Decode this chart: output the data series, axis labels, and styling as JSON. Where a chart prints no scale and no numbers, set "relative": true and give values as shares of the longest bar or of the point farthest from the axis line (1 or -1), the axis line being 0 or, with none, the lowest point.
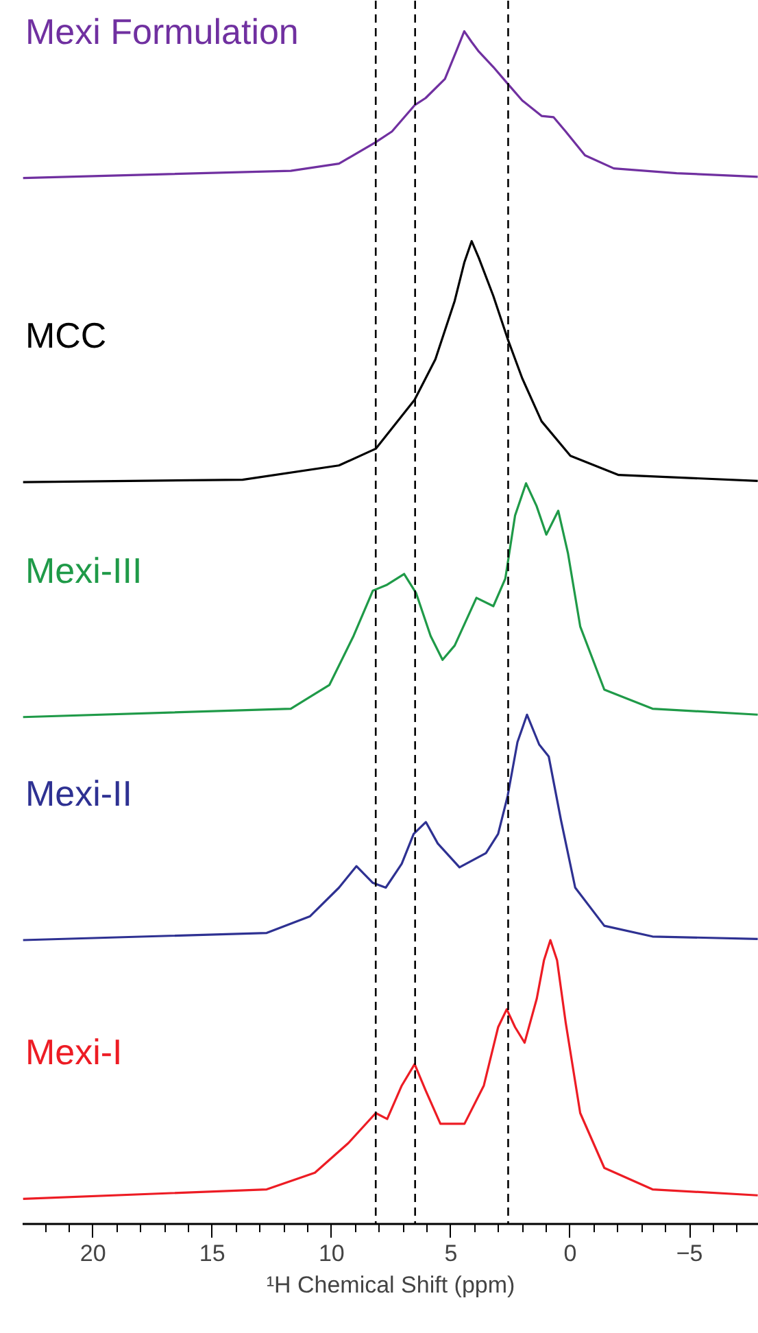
{
  "chart_data": {
    "type": "line",
    "relative": true,
    "xlabel": "¹H Chemical Shift (ppm)",
    "xlim": [
      22.95,
      -7.9
    ],
    "xticks": [
      20,
      15,
      10,
      5,
      0,
      {
        "value": -5,
        "label": "−5"
      }
    ],
    "grid": false,
    "line_style": "solid",
    "marker": "none",
    "ref_lines": [
      {
        "axis": "x",
        "value": 8.15,
        "label": null,
        "color": "#000000",
        "line_style": "dashed"
      },
      {
        "axis": "x",
        "value": 6.5,
        "label": null,
        "color": "#000000",
        "line_style": "dashed"
      },
      {
        "axis": "x",
        "value": 2.6,
        "label": null,
        "color": "#000000",
        "line_style": "dashed"
      }
    ],
    "series": [
      {
        "name": "Mexi Formulation",
        "color": "#7030a0",
        "x": [
          22.93,
          11.71,
          9.69,
          8.15,
          7.47,
          6.52,
          6.06,
          5.25,
          4.74,
          4.44,
          4.13,
          3.83,
          3.22,
          2.62,
          2.01,
          1.2,
          0.7,
          0.19,
          -0.62,
          -1.83,
          -4.46,
          -7.86
        ],
        "values": [
          0.877,
          0.883,
          0.889,
          0.907,
          0.916,
          0.938,
          0.944,
          0.96,
          0.985,
          1.0,
          0.991,
          0.983,
          0.97,
          0.956,
          0.942,
          0.929,
          0.928,
          0.916,
          0.896,
          0.885,
          0.881,
          0.878
        ]
      },
      {
        "name": "MCC",
        "color": "#000000",
        "x": [
          22.93,
          13.73,
          9.69,
          8.15,
          6.52,
          5.65,
          4.84,
          4.44,
          4.13,
          3.83,
          3.22,
          2.62,
          2.01,
          1.2,
          -0.01,
          -2.03,
          -7.86
        ],
        "values": [
          0.622,
          0.624,
          0.636,
          0.65,
          0.691,
          0.725,
          0.774,
          0.806,
          0.824,
          0.81,
          0.778,
          0.742,
          0.709,
          0.673,
          0.644,
          0.628,
          0.623
        ]
      },
      {
        "name": "Mexi-III",
        "color": "#1f9a48",
        "x": [
          22.93,
          11.71,
          10.09,
          9.08,
          8.27,
          7.67,
          6.96,
          6.46,
          5.85,
          5.35,
          4.84,
          3.93,
          3.22,
          2.72,
          2.31,
          1.85,
          1.41,
          1.0,
          0.5,
          0.09,
          -0.42,
          -1.43,
          -3.45,
          -7.86
        ],
        "values": [
          0.425,
          0.432,
          0.452,
          0.493,
          0.531,
          0.536,
          0.545,
          0.529,
          0.493,
          0.473,
          0.485,
          0.525,
          0.518,
          0.541,
          0.594,
          0.621,
          0.602,
          0.578,
          0.598,
          0.562,
          0.501,
          0.448,
          0.432,
          0.427
        ]
      },
      {
        "name": "Mexi-II",
        "color": "#2e3192",
        "x": [
          22.93,
          12.72,
          10.9,
          9.69,
          8.96,
          8.27,
          7.73,
          7.06,
          6.56,
          6.05,
          5.55,
          4.64,
          3.53,
          3.02,
          2.62,
          2.21,
          1.81,
          1.3,
          0.9,
          0.39,
          -0.21,
          -1.43,
          -3.45,
          -7.86
        ],
        "values": [
          0.238,
          0.244,
          0.258,
          0.282,
          0.3,
          0.286,
          0.282,
          0.302,
          0.327,
          0.337,
          0.319,
          0.299,
          0.311,
          0.327,
          0.359,
          0.404,
          0.427,
          0.402,
          0.392,
          0.339,
          0.282,
          0.25,
          0.241,
          0.239
        ]
      },
      {
        "name": "Mexi-I",
        "color": "#ed1c24",
        "x": [
          22.93,
          12.72,
          10.7,
          9.29,
          8.15,
          7.67,
          7.06,
          6.52,
          6.06,
          5.44,
          4.43,
          3.62,
          3.02,
          2.66,
          2.31,
          1.91,
          1.4,
          1.1,
          0.83,
          0.55,
          0.19,
          -0.42,
          -1.43,
          -3.45,
          -7.86
        ],
        "values": [
          0.021,
          0.029,
          0.043,
          0.068,
          0.093,
          0.088,
          0.116,
          0.134,
          0.112,
          0.084,
          0.084,
          0.116,
          0.165,
          0.18,
          0.165,
          0.152,
          0.189,
          0.221,
          0.238,
          0.221,
          0.169,
          0.093,
          0.047,
          0.029,
          0.024
        ]
      }
    ]
  }
}
